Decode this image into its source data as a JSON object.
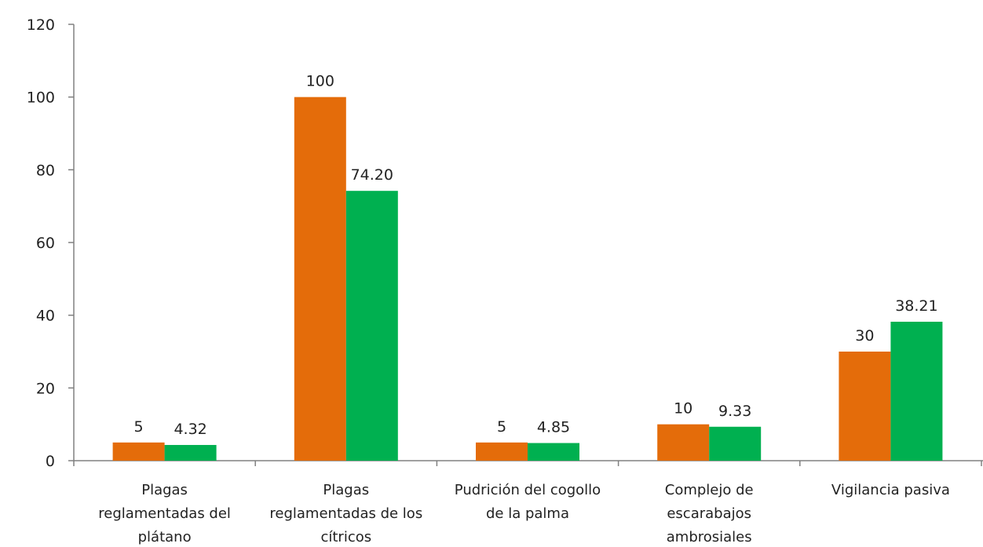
{
  "chart_data": {
    "type": "bar",
    "title": "",
    "xlabel": "",
    "ylabel": "",
    "ylim": [
      0,
      120
    ],
    "yticks": [
      0,
      20,
      40,
      60,
      80,
      100,
      120
    ],
    "grid": false,
    "legend": "none",
    "categories": [
      "Plagas reglamentadas del plátano",
      "Plagas reglamentadas de los cítricos",
      "Pudrición del cogollo de la palma",
      "Complejo de escarabajos ambrosiales",
      "Vigilancia pasiva"
    ],
    "category_lines": [
      [
        "Plagas",
        "reglamentadas del",
        "plátano"
      ],
      [
        "Plagas",
        "reglamentadas de los",
        "cítricos"
      ],
      [
        "Pudrición del cogollo",
        "de la palma"
      ],
      [
        "Complejo de",
        "escarabajos",
        "ambrosiales"
      ],
      [
        "Vigilancia pasiva"
      ]
    ],
    "series": [
      {
        "color": "#E46C0A",
        "values": [
          5,
          100,
          5,
          10,
          30
        ],
        "labels": [
          "5",
          "100",
          "5",
          "10",
          "30"
        ]
      },
      {
        "color": "#00B050",
        "values": [
          4.32,
          74.2,
          4.85,
          9.33,
          38.21
        ],
        "labels": [
          "4.32",
          "74.20",
          "4.85",
          "9.33",
          "38.21"
        ]
      }
    ],
    "axis_color": "#808080"
  }
}
